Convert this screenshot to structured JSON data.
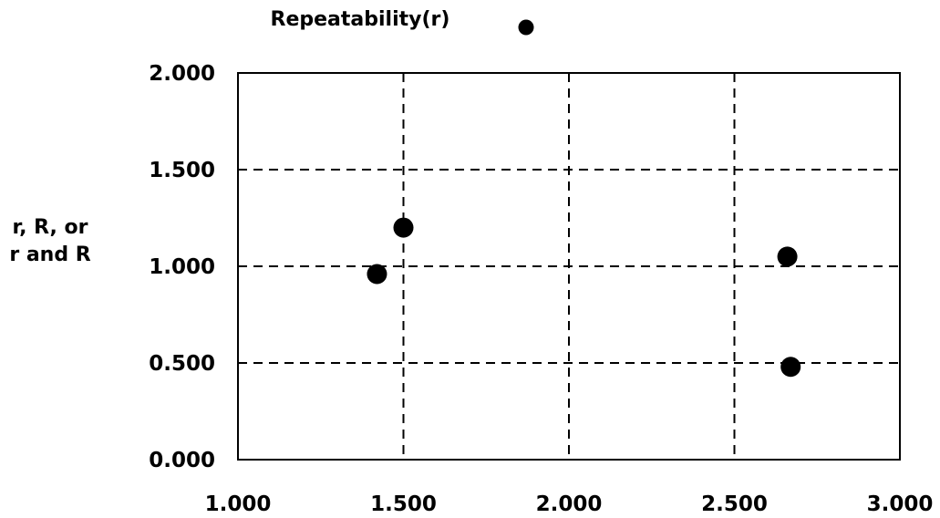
{
  "chart_data": {
    "type": "scatter",
    "title": "",
    "xlabel": "",
    "ylabel": [
      "r, R, or",
      "r and R"
    ],
    "xlim": [
      1.0,
      3.0
    ],
    "ylim": [
      0.0,
      2.0
    ],
    "x_ticks": [
      "1.000",
      "1.500",
      "2.000",
      "2.500",
      "3.000"
    ],
    "y_ticks": [
      "0.000",
      "0.500",
      "1.000",
      "1.500",
      "2.000"
    ],
    "grid": "dashed",
    "legend": {
      "position": "top",
      "entries": [
        "Repeatability(r)"
      ]
    },
    "series": [
      {
        "name": "Repeatability(r)",
        "color": "#000000",
        "marker": "circle",
        "points": [
          {
            "x": 1.42,
            "y": 0.96
          },
          {
            "x": 1.5,
            "y": 1.2
          },
          {
            "x": 2.66,
            "y": 1.05
          },
          {
            "x": 2.67,
            "y": 0.48
          }
        ]
      }
    ]
  }
}
